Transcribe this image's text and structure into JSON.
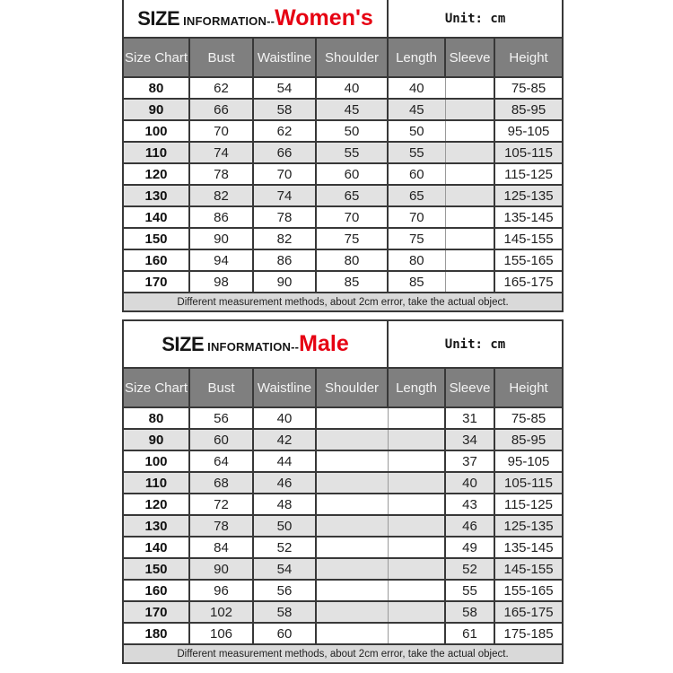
{
  "colors": {
    "accent_red": "#e60012",
    "header_bg": "#7f7f7f",
    "shaded_row_bg": "#e2e2e2",
    "note_bg": "#d9d9d9"
  },
  "tables": [
    {
      "id": "womens",
      "title": {
        "size": "SIZE",
        "info": "INFORMATION--",
        "group": "Women's"
      },
      "unit": "Unit: cm",
      "columns": [
        "Size Chart",
        "Bust",
        "Waistline",
        "Shoulder",
        "Length",
        "Sleeve",
        "Height"
      ],
      "rows": [
        {
          "cells": [
            "80",
            "62",
            "54",
            "40",
            "40",
            "",
            "75-85"
          ],
          "shaded": false
        },
        {
          "cells": [
            "90",
            "66",
            "58",
            "45",
            "45",
            "",
            "85-95"
          ],
          "shaded": true
        },
        {
          "cells": [
            "100",
            "70",
            "62",
            "50",
            "50",
            "",
            "95-105"
          ],
          "shaded": false
        },
        {
          "cells": [
            "110",
            "74",
            "66",
            "55",
            "55",
            "",
            "105-115"
          ],
          "shaded": true
        },
        {
          "cells": [
            "120",
            "78",
            "70",
            "60",
            "60",
            "",
            "115-125"
          ],
          "shaded": false
        },
        {
          "cells": [
            "130",
            "82",
            "74",
            "65",
            "65",
            "",
            "125-135"
          ],
          "shaded": true
        },
        {
          "cells": [
            "140",
            "86",
            "78",
            "70",
            "70",
            "",
            "135-145"
          ],
          "shaded": false
        },
        {
          "cells": [
            "150",
            "90",
            "82",
            "75",
            "75",
            "",
            "145-155"
          ],
          "shaded": false
        },
        {
          "cells": [
            "160",
            "94",
            "86",
            "80",
            "80",
            "",
            "155-165"
          ],
          "shaded": false
        },
        {
          "cells": [
            "170",
            "98",
            "90",
            "85",
            "85",
            "",
            "165-175"
          ],
          "shaded": false
        }
      ],
      "note": "Different measurement methods, about 2cm error, take the actual object."
    },
    {
      "id": "male",
      "title": {
        "size": "SIZE",
        "info": "INFORMATION--",
        "group": "Male"
      },
      "unit": "Unit: cm",
      "columns": [
        "Size Chart",
        "Bust",
        "Waistline",
        "Shoulder",
        "Length",
        "Sleeve",
        "Height"
      ],
      "rows": [
        {
          "cells": [
            "80",
            "56",
            "40",
            "",
            "",
            "31",
            "75-85"
          ],
          "shaded": false
        },
        {
          "cells": [
            "90",
            "60",
            "42",
            "",
            "",
            "34",
            "85-95"
          ],
          "shaded": true
        },
        {
          "cells": [
            "100",
            "64",
            "44",
            "",
            "",
            "37",
            "95-105"
          ],
          "shaded": false
        },
        {
          "cells": [
            "110",
            "68",
            "46",
            "",
            "",
            "40",
            "105-115"
          ],
          "shaded": true
        },
        {
          "cells": [
            "120",
            "72",
            "48",
            "",
            "",
            "43",
            "115-125"
          ],
          "shaded": false
        },
        {
          "cells": [
            "130",
            "78",
            "50",
            "",
            "",
            "46",
            "125-135"
          ],
          "shaded": true
        },
        {
          "cells": [
            "140",
            "84",
            "52",
            "",
            "",
            "49",
            "135-145"
          ],
          "shaded": false
        },
        {
          "cells": [
            "150",
            "90",
            "54",
            "",
            "",
            "52",
            "145-155"
          ],
          "shaded": true
        },
        {
          "cells": [
            "160",
            "96",
            "56",
            "",
            "",
            "55",
            "155-165"
          ],
          "shaded": false
        },
        {
          "cells": [
            "170",
            "102",
            "58",
            "",
            "",
            "58",
            "165-175"
          ],
          "shaded": true
        },
        {
          "cells": [
            "180",
            "106",
            "60",
            "",
            "",
            "61",
            "175-185"
          ],
          "shaded": false
        }
      ],
      "note": "Different measurement methods, about 2cm error, take the actual object."
    }
  ]
}
